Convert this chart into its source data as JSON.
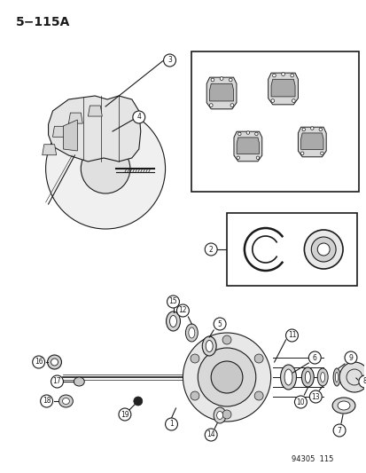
{
  "title": "5−115A",
  "watermark": "94305  115",
  "bg_color": "#ffffff",
  "fg_color": "#1a1a1a",
  "figsize": [
    4.14,
    5.33
  ],
  "dpi": 100
}
